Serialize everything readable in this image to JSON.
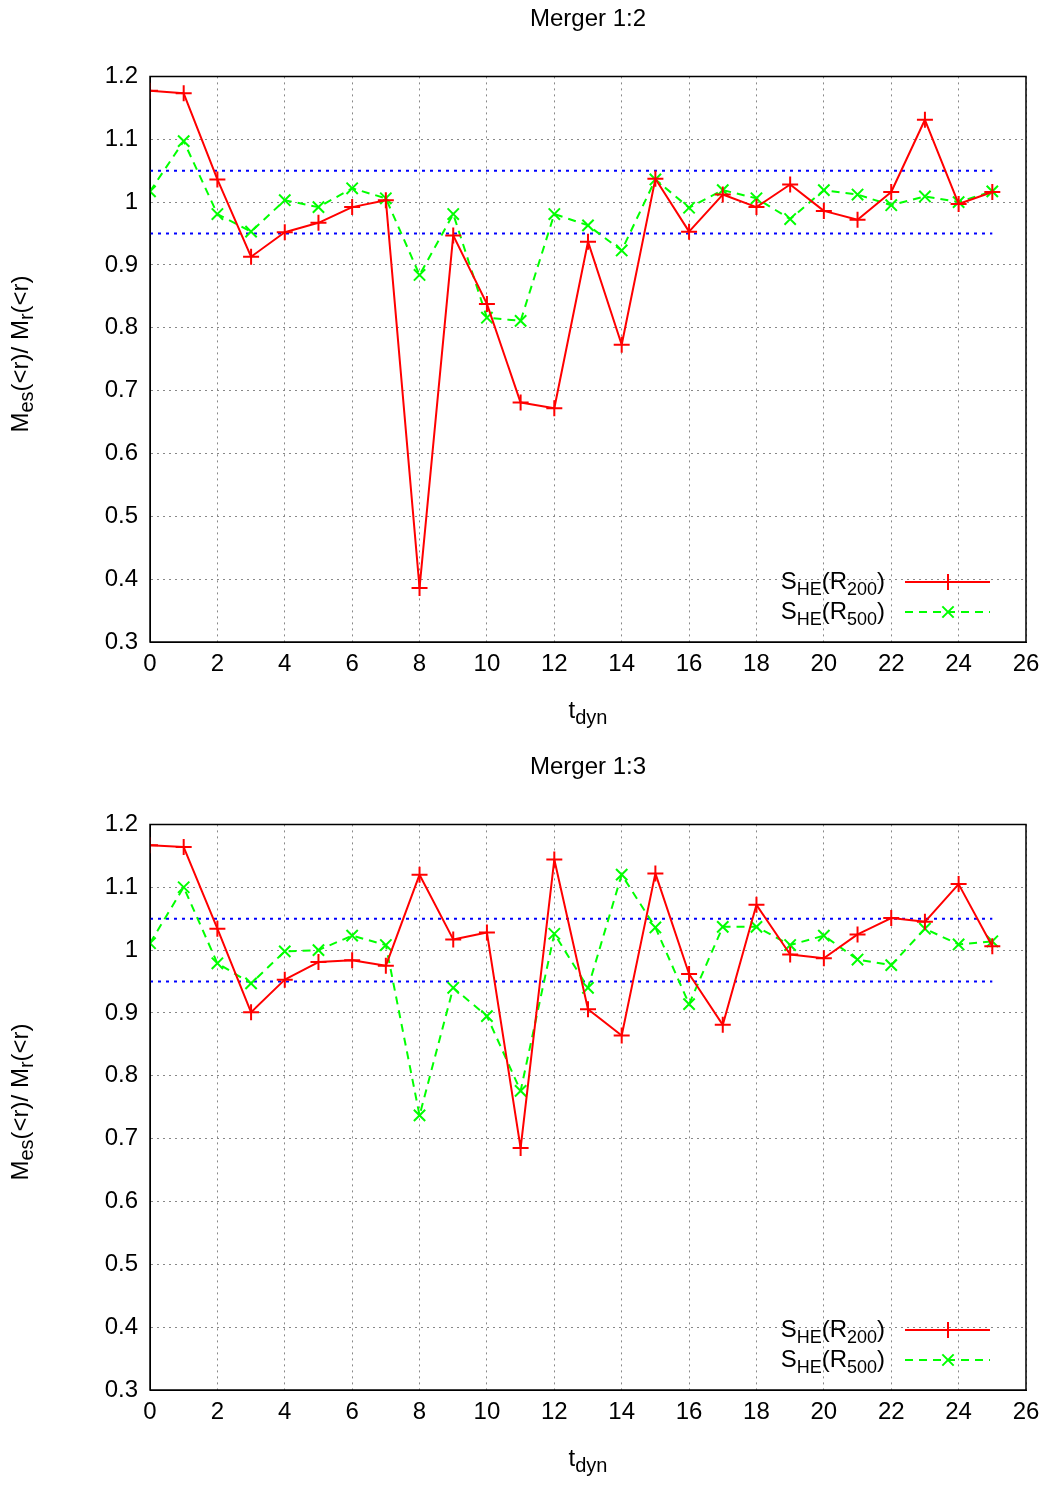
{
  "chart_data": [
    {
      "type": "line",
      "title": "Merger 1:2",
      "xlabel": "t$_{dyn}$",
      "ylabel": "M$_{es}$(<r)/ M$_{r}$(<r)",
      "x": [
        0,
        1,
        2,
        3,
        4,
        5,
        6,
        7,
        8,
        9,
        10,
        11,
        12,
        13,
        14,
        15,
        16,
        17,
        18,
        19,
        20,
        21,
        22,
        23,
        24,
        25
      ],
      "series": [
        {
          "name": "S$_{HE}$(R$_{200}$)",
          "color": "#ff0000",
          "marker": "cross",
          "line_style": "solid",
          "values": [
            1.177,
            1.173,
            1.036,
            0.913,
            0.952,
            0.967,
            0.992,
            1.003,
            0.386,
            0.947,
            0.838,
            0.681,
            0.672,
            0.937,
            0.773,
            1.037,
            0.953,
            1.012,
            0.992,
            1.028,
            0.986,
            0.972,
            1.016,
            1.131,
            0.997,
            1.016
          ]
        },
        {
          "name": "S$_{HE}$(R$_{500}$)",
          "color": "#00ff00",
          "marker": "x",
          "line_style": "dashed",
          "values": [
            1.017,
            1.097,
            0.981,
            0.953,
            1.003,
            0.992,
            1.022,
            1.006,
            0.884,
            0.981,
            0.816,
            0.811,
            0.981,
            0.963,
            0.923,
            1.036,
            0.991,
            1.019,
            1.006,
            0.973,
            1.019,
            1.012,
            0.995,
            1.009,
            1.0,
            1.017
          ]
        }
      ],
      "ref_lines": [
        {
          "axis": "y",
          "value": 1.05,
          "color": "#0000ff",
          "line_style": "dotted"
        },
        {
          "axis": "y",
          "value": 0.95,
          "color": "#0000ff",
          "line_style": "dotted"
        }
      ],
      "xlim": [
        0,
        26
      ],
      "xticks": [
        0,
        2,
        4,
        6,
        8,
        10,
        12,
        14,
        16,
        18,
        20,
        22,
        24,
        26
      ],
      "ylim": [
        0.3,
        1.2
      ],
      "yticks": [
        0.3,
        0.4,
        0.5,
        0.6,
        0.7,
        0.8,
        0.9,
        1,
        1.1,
        1.2
      ],
      "grid": true,
      "legend": "bottom right"
    },
    {
      "type": "line",
      "title": "Merger 1:3",
      "xlabel": "t$_{dyn}$",
      "ylabel": "M$_{es}$(<r)/ M$_{r}$(<r)",
      "x": [
        0,
        1,
        2,
        3,
        4,
        5,
        6,
        7,
        8,
        9,
        10,
        11,
        12,
        13,
        14,
        15,
        16,
        17,
        18,
        19,
        20,
        21,
        22,
        23,
        24,
        25
      ],
      "series": [
        {
          "name": "S$_{HE}$(R$_{200}$)",
          "color": "#ff0000",
          "marker": "cross",
          "line_style": "solid",
          "values": [
            1.167,
            1.164,
            1.034,
            0.901,
            0.953,
            0.981,
            0.984,
            0.975,
            1.12,
            1.017,
            1.028,
            0.685,
            1.144,
            0.906,
            0.864,
            1.122,
            0.962,
            0.881,
            1.072,
            0.993,
            0.987,
            1.025,
            1.051,
            1.045,
            1.105,
            1.006
          ]
        },
        {
          "name": "S$_{HE}$(R$_{500}$)",
          "color": "#00ff00",
          "marker": "x",
          "line_style": "dashed",
          "values": [
            1.011,
            1.1,
            0.979,
            0.947,
            0.998,
            1.0,
            1.023,
            1.008,
            0.737,
            0.94,
            0.895,
            0.776,
            1.026,
            0.94,
            1.12,
            1.036,
            0.914,
            1.037,
            1.037,
            1.008,
            1.023,
            0.985,
            0.976,
            1.034,
            1.009,
            1.014
          ]
        }
      ],
      "ref_lines": [
        {
          "axis": "y",
          "value": 1.05,
          "color": "#0000ff",
          "line_style": "dotted"
        },
        {
          "axis": "y",
          "value": 0.95,
          "color": "#0000ff",
          "line_style": "dotted"
        }
      ],
      "xlim": [
        0,
        26
      ],
      "xticks": [
        0,
        2,
        4,
        6,
        8,
        10,
        12,
        14,
        16,
        18,
        20,
        22,
        24,
        26
      ],
      "ylim": [
        0.3,
        1.2
      ],
      "yticks": [
        0.3,
        0.4,
        0.5,
        0.6,
        0.7,
        0.8,
        0.9,
        1,
        1.1,
        1.2
      ],
      "grid": true,
      "legend": "bottom right"
    }
  ]
}
